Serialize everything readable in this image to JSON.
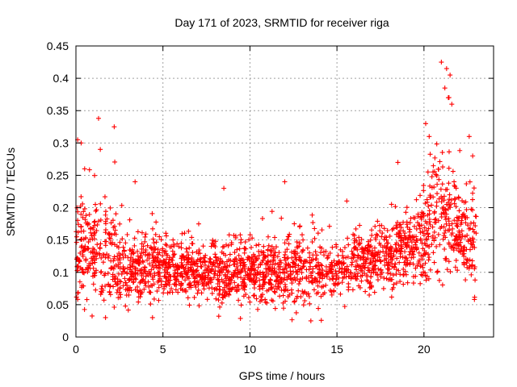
{
  "chart_data": {
    "type": "scatter",
    "title": "Day 171 of 2023, SRMTID for receiver riga",
    "xlabel": "GPS time / hours",
    "ylabel": "SRMTID / TECUs",
    "xlim": [
      0,
      24
    ],
    "ylim": [
      0,
      0.45
    ],
    "xticks": [
      0,
      5,
      10,
      15,
      20
    ],
    "xtick_labels": [
      "0",
      "5",
      "10",
      "15",
      "20"
    ],
    "yticks": [
      0,
      0.05,
      0.1,
      0.15,
      0.2,
      0.25,
      0.3,
      0.35,
      0.4,
      0.45
    ],
    "ytick_labels": [
      "0",
      "0.05",
      "0.1",
      "0.15",
      "0.2",
      "0.25",
      "0.3",
      "0.35",
      "0.4",
      "0.45"
    ],
    "grid": true,
    "marker": "+",
    "point_color": "#ff0000",
    "series": [
      {
        "name": "SRMTID",
        "x_range": [
          0,
          23
        ],
        "point_count": 2200,
        "envelope": [
          {
            "t": 0.0,
            "median": 0.13,
            "spread": 0.06
          },
          {
            "t": 1.0,
            "median": 0.13,
            "spread": 0.07
          },
          {
            "t": 1.5,
            "median": 0.14,
            "spread": 0.08
          },
          {
            "t": 2.5,
            "median": 0.1,
            "spread": 0.05
          },
          {
            "t": 4.0,
            "median": 0.11,
            "spread": 0.04
          },
          {
            "t": 6.0,
            "median": 0.105,
            "spread": 0.035
          },
          {
            "t": 8.0,
            "median": 0.095,
            "spread": 0.04
          },
          {
            "t": 10.0,
            "median": 0.1,
            "spread": 0.04
          },
          {
            "t": 12.0,
            "median": 0.1,
            "spread": 0.045
          },
          {
            "t": 14.0,
            "median": 0.1,
            "spread": 0.045
          },
          {
            "t": 16.0,
            "median": 0.115,
            "spread": 0.04
          },
          {
            "t": 18.0,
            "median": 0.125,
            "spread": 0.045
          },
          {
            "t": 19.5,
            "median": 0.14,
            "spread": 0.05
          },
          {
            "t": 21.0,
            "median": 0.18,
            "spread": 0.09
          },
          {
            "t": 22.0,
            "median": 0.16,
            "spread": 0.07
          },
          {
            "t": 23.0,
            "median": 0.14,
            "spread": 0.06
          }
        ],
        "spikes": [
          {
            "x": 0.1,
            "y": 0.305
          },
          {
            "x": 0.3,
            "y": 0.3
          },
          {
            "x": 0.5,
            "y": 0.26
          },
          {
            "x": 1.3,
            "y": 0.338
          },
          {
            "x": 1.4,
            "y": 0.29
          },
          {
            "x": 2.2,
            "y": 0.325
          },
          {
            "x": 3.4,
            "y": 0.24
          },
          {
            "x": 8.5,
            "y": 0.23
          },
          {
            "x": 12.0,
            "y": 0.24
          },
          {
            "x": 18.5,
            "y": 0.27
          },
          {
            "x": 20.1,
            "y": 0.33
          },
          {
            "x": 20.3,
            "y": 0.31
          },
          {
            "x": 21.0,
            "y": 0.425
          },
          {
            "x": 21.3,
            "y": 0.415
          },
          {
            "x": 21.5,
            "y": 0.405
          },
          {
            "x": 21.2,
            "y": 0.385
          },
          {
            "x": 21.4,
            "y": 0.37
          },
          {
            "x": 21.6,
            "y": 0.36
          },
          {
            "x": 22.6,
            "y": 0.31
          },
          {
            "x": 22.8,
            "y": 0.28
          },
          {
            "x": 13.5,
            "y": 0.025
          },
          {
            "x": 4.4,
            "y": 0.03
          },
          {
            "x": 1.7,
            "y": 0.03
          },
          {
            "x": 22.9,
            "y": 0.058
          }
        ]
      }
    ]
  }
}
